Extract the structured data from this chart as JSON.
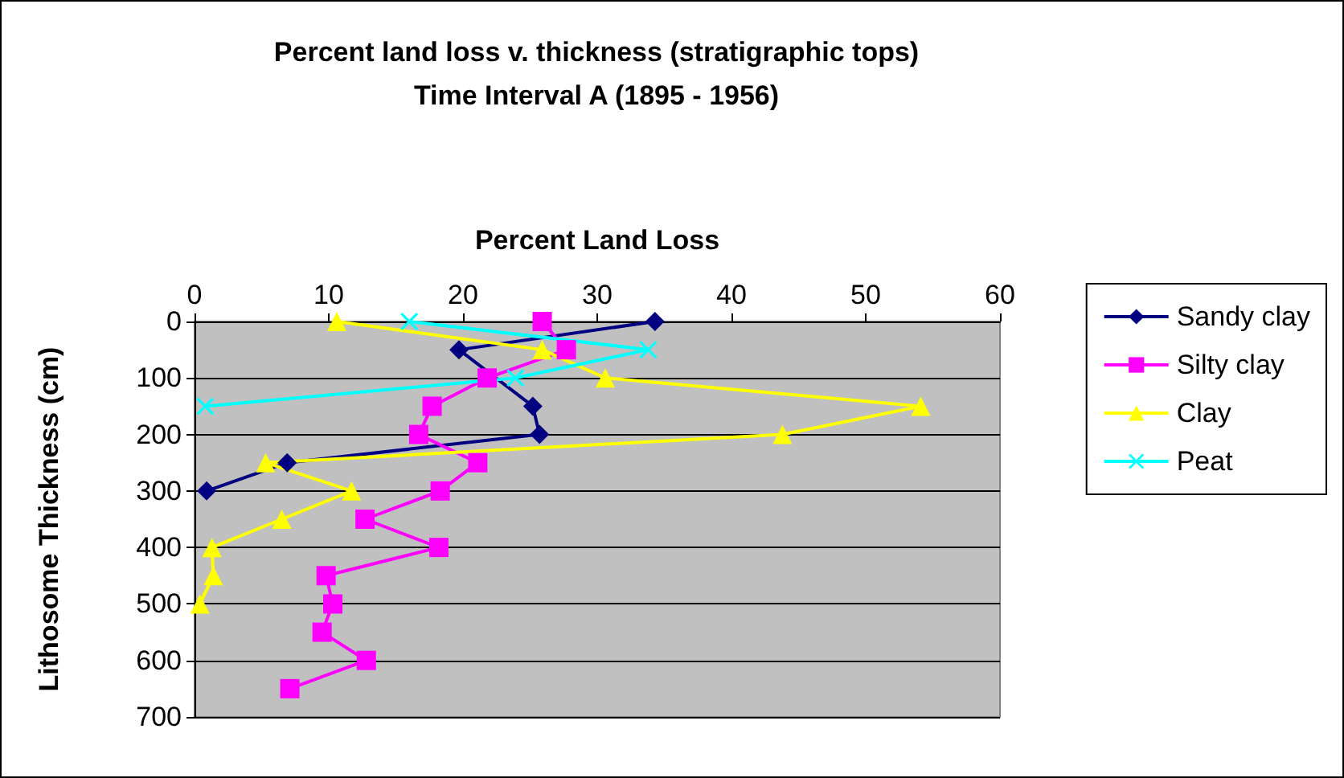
{
  "chart_data": {
    "type": "line",
    "title": "Percent land loss v. thickness (stratigraphic tops)",
    "subtitle": "Time Interval A (1895 - 1956)",
    "xlabel": "Percent Land Loss",
    "ylabel": "Lithosome Thickness (cm)",
    "xlim": [
      0,
      60
    ],
    "xticks": [
      0,
      10,
      20,
      30,
      40,
      50,
      60
    ],
    "ylim": [
      700,
      0
    ],
    "yticks": [
      0,
      100,
      200,
      300,
      400,
      500,
      600,
      700
    ],
    "grid": "y",
    "legend": "right",
    "series": [
      {
        "name": "Sandy clay",
        "color": "#000080",
        "marker": "diamond",
        "x": [
          34.3,
          19.7,
          22,
          25.2,
          25.7,
          6.9,
          0.9
        ],
        "values": [
          0,
          50,
          null,
          150,
          200,
          250,
          300
        ]
      },
      {
        "name": "Silty clay",
        "color": "#ff00ff",
        "marker": "square",
        "x": [
          25.9,
          27.7,
          21.8,
          17.7,
          16.7,
          21.1,
          18.3,
          12.7,
          18.2,
          9.8,
          10.3,
          9.5,
          12.8,
          7.1
        ],
        "values": [
          0,
          50,
          100,
          150,
          200,
          250,
          300,
          350,
          400,
          450,
          500,
          550,
          600,
          650
        ]
      },
      {
        "name": "Clay",
        "color": "#ffff00",
        "marker": "triangle",
        "x": [
          10.6,
          25.9,
          30.6,
          54.1,
          43.8,
          5.3,
          11.7,
          6.5,
          1.3,
          1.4,
          0.4
        ],
        "values": [
          0,
          50,
          100,
          150,
          200,
          250,
          300,
          350,
          400,
          450,
          500
        ]
      },
      {
        "name": "Peat",
        "color": "#00ffff",
        "marker": "cross",
        "x": [
          16,
          33.8,
          23.9,
          0.8
        ],
        "values": [
          0,
          50,
          100,
          150
        ]
      }
    ]
  }
}
